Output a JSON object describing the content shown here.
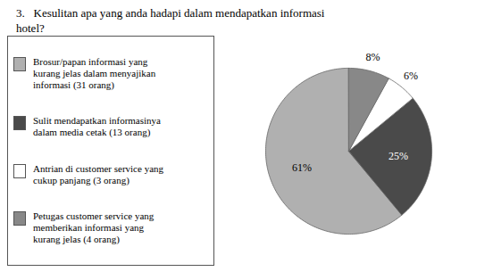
{
  "chart_data": {
    "type": "pie",
    "title": "3.   Kesulitan apa yang anda hadapi dalam mendapatkan informasi\nhotel?",
    "categories": [
      "Brosur/papan informasi yang\nkurang jelas dalam menyajikan\ninformasi (31 orang)",
      "Sulit mendapatkan informasinya\ndalam media cetak (13 orang)",
      "Antrian di customer service yang\ncukup panjang (3 orang)",
      "Petugas customer service yang\nmemberikan informasi yang\nkurang jelas (4 orang)"
    ],
    "values": [
      61,
      25,
      6,
      8
    ],
    "value_labels": [
      "61%",
      "25%",
      "6%",
      "8%"
    ],
    "data_labels": true,
    "colors": [
      "#b0b0b0",
      "#4a4a4a",
      "#ffffff",
      "#888888"
    ],
    "legend": "left"
  }
}
